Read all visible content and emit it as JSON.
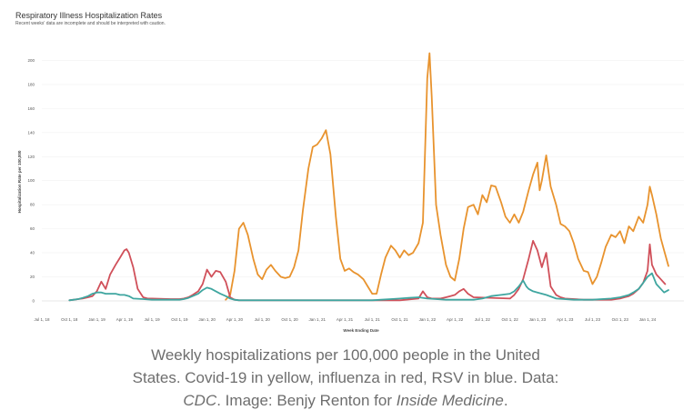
{
  "chart_data": {
    "type": "line",
    "title": "Respiratory Illness Hospitalization Rates",
    "subtitle": "Recent weeks' data are incomplete and should be interpreted with caution.",
    "xlabel": "Week Ending Date",
    "ylabel": "Hospitalization Rate per 100,000",
    "ylim": [
      0,
      220
    ],
    "xlim": [
      2018.5,
      2024.33
    ],
    "y_ticks": [
      0,
      20,
      40,
      60,
      80,
      100,
      120,
      140,
      160,
      180,
      200
    ],
    "x_ticks": [
      {
        "label": "Jul 1, 18",
        "x": 2018.5
      },
      {
        "label": "Oct 1, 18",
        "x": 2018.75
      },
      {
        "label": "Jan 1, 19",
        "x": 2019.0
      },
      {
        "label": "Apr 1, 19",
        "x": 2019.25
      },
      {
        "label": "Jul 1, 19",
        "x": 2019.5
      },
      {
        "label": "Oct 1, 19",
        "x": 2019.75
      },
      {
        "label": "Jan 1, 20",
        "x": 2020.0
      },
      {
        "label": "Apr 1, 20",
        "x": 2020.25
      },
      {
        "label": "Jul 1, 20",
        "x": 2020.5
      },
      {
        "label": "Oct 1, 20",
        "x": 2020.75
      },
      {
        "label": "Jan 1, 21",
        "x": 2021.0
      },
      {
        "label": "Apr 1, 21",
        "x": 2021.25
      },
      {
        "label": "Jul 1, 21",
        "x": 2021.5
      },
      {
        "label": "Oct 1, 21",
        "x": 2021.75
      },
      {
        "label": "Jan 1, 22",
        "x": 2022.0
      },
      {
        "label": "Apr 1, 22",
        "x": 2022.25
      },
      {
        "label": "Jul 1, 22",
        "x": 2022.5
      },
      {
        "label": "Oct 1, 22",
        "x": 2022.75
      },
      {
        "label": "Jan 1, 23",
        "x": 2023.0
      },
      {
        "label": "Apr 1, 23",
        "x": 2023.25
      },
      {
        "label": "Jul 1, 23",
        "x": 2023.5
      },
      {
        "label": "Oct 1, 23",
        "x": 2023.75
      },
      {
        "label": "Jan 1, 24",
        "x": 2024.0
      }
    ],
    "series": [
      {
        "name": "Covid-19",
        "color": "#e8932e",
        "points": [
          [
            2020.17,
            1
          ],
          [
            2020.21,
            5
          ],
          [
            2020.25,
            25
          ],
          [
            2020.29,
            60
          ],
          [
            2020.33,
            65
          ],
          [
            2020.37,
            55
          ],
          [
            2020.42,
            35
          ],
          [
            2020.46,
            22
          ],
          [
            2020.5,
            18
          ],
          [
            2020.54,
            26
          ],
          [
            2020.58,
            30
          ],
          [
            2020.62,
            25
          ],
          [
            2020.67,
            20
          ],
          [
            2020.71,
            19
          ],
          [
            2020.75,
            20
          ],
          [
            2020.79,
            28
          ],
          [
            2020.83,
            42
          ],
          [
            2020.87,
            75
          ],
          [
            2020.92,
            110
          ],
          [
            2020.96,
            128
          ],
          [
            2021.0,
            130
          ],
          [
            2021.04,
            135
          ],
          [
            2021.08,
            142
          ],
          [
            2021.12,
            122
          ],
          [
            2021.17,
            70
          ],
          [
            2021.21,
            35
          ],
          [
            2021.25,
            25
          ],
          [
            2021.29,
            27
          ],
          [
            2021.33,
            24
          ],
          [
            2021.37,
            22
          ],
          [
            2021.42,
            18
          ],
          [
            2021.46,
            12
          ],
          [
            2021.5,
            6
          ],
          [
            2021.54,
            6
          ],
          [
            2021.58,
            22
          ],
          [
            2021.62,
            36
          ],
          [
            2021.67,
            46
          ],
          [
            2021.71,
            42
          ],
          [
            2021.75,
            36
          ],
          [
            2021.79,
            42
          ],
          [
            2021.83,
            38
          ],
          [
            2021.87,
            40
          ],
          [
            2021.92,
            48
          ],
          [
            2021.96,
            65
          ],
          [
            2022.0,
            185
          ],
          [
            2022.02,
            206
          ],
          [
            2022.04,
            170
          ],
          [
            2022.08,
            80
          ],
          [
            2022.12,
            55
          ],
          [
            2022.17,
            30
          ],
          [
            2022.21,
            20
          ],
          [
            2022.25,
            17
          ],
          [
            2022.29,
            35
          ],
          [
            2022.33,
            60
          ],
          [
            2022.37,
            78
          ],
          [
            2022.42,
            80
          ],
          [
            2022.46,
            72
          ],
          [
            2022.5,
            88
          ],
          [
            2022.54,
            82
          ],
          [
            2022.58,
            96
          ],
          [
            2022.62,
            95
          ],
          [
            2022.67,
            82
          ],
          [
            2022.71,
            70
          ],
          [
            2022.75,
            65
          ],
          [
            2022.79,
            72
          ],
          [
            2022.83,
            65
          ],
          [
            2022.87,
            74
          ],
          [
            2022.92,
            92
          ],
          [
            2022.96,
            105
          ],
          [
            2023.0,
            115
          ],
          [
            2023.02,
            92
          ],
          [
            2023.04,
            100
          ],
          [
            2023.08,
            121
          ],
          [
            2023.12,
            95
          ],
          [
            2023.17,
            80
          ],
          [
            2023.21,
            64
          ],
          [
            2023.25,
            62
          ],
          [
            2023.29,
            58
          ],
          [
            2023.33,
            48
          ],
          [
            2023.37,
            35
          ],
          [
            2023.42,
            25
          ],
          [
            2023.46,
            24
          ],
          [
            2023.5,
            14
          ],
          [
            2023.54,
            20
          ],
          [
            2023.58,
            32
          ],
          [
            2023.62,
            45
          ],
          [
            2023.67,
            55
          ],
          [
            2023.71,
            53
          ],
          [
            2023.75,
            58
          ],
          [
            2023.79,
            48
          ],
          [
            2023.83,
            62
          ],
          [
            2023.87,
            58
          ],
          [
            2023.92,
            70
          ],
          [
            2023.96,
            65
          ],
          [
            2024.0,
            80
          ],
          [
            2024.02,
            95
          ],
          [
            2024.04,
            88
          ],
          [
            2024.08,
            72
          ],
          [
            2024.12,
            52
          ],
          [
            2024.15,
            42
          ],
          [
            2024.19,
            29
          ]
        ]
      },
      {
        "name": "Influenza",
        "color": "#d0505a",
        "points": [
          [
            2018.75,
            0.5
          ],
          [
            2018.79,
            1
          ],
          [
            2018.83,
            1.5
          ],
          [
            2018.87,
            2
          ],
          [
            2018.92,
            3
          ],
          [
            2018.96,
            4
          ],
          [
            2019.0,
            8
          ],
          [
            2019.04,
            16
          ],
          [
            2019.08,
            10
          ],
          [
            2019.12,
            22
          ],
          [
            2019.17,
            30
          ],
          [
            2019.21,
            36
          ],
          [
            2019.25,
            42
          ],
          [
            2019.27,
            43
          ],
          [
            2019.29,
            40
          ],
          [
            2019.33,
            28
          ],
          [
            2019.37,
            10
          ],
          [
            2019.42,
            3
          ],
          [
            2019.46,
            2
          ],
          [
            2019.5,
            2
          ],
          [
            2019.67,
            1.5
          ],
          [
            2019.75,
            1.5
          ],
          [
            2019.79,
            2
          ],
          [
            2019.83,
            3
          ],
          [
            2019.87,
            5
          ],
          [
            2019.92,
            8
          ],
          [
            2019.96,
            14
          ],
          [
            2020.0,
            26
          ],
          [
            2020.04,
            20
          ],
          [
            2020.08,
            25
          ],
          [
            2020.12,
            24
          ],
          [
            2020.17,
            16
          ],
          [
            2020.21,
            3
          ],
          [
            2020.25,
            1
          ],
          [
            2020.29,
            0.5
          ],
          [
            2021.75,
            0.5
          ],
          [
            2021.92,
            2
          ],
          [
            2021.96,
            8
          ],
          [
            2022.0,
            3
          ],
          [
            2022.04,
            2
          ],
          [
            2022.08,
            2
          ],
          [
            2022.12,
            2
          ],
          [
            2022.17,
            3
          ],
          [
            2022.21,
            4
          ],
          [
            2022.25,
            5
          ],
          [
            2022.29,
            8
          ],
          [
            2022.33,
            10
          ],
          [
            2022.37,
            6
          ],
          [
            2022.42,
            3
          ],
          [
            2022.75,
            2
          ],
          [
            2022.79,
            5
          ],
          [
            2022.83,
            10
          ],
          [
            2022.87,
            18
          ],
          [
            2022.92,
            35
          ],
          [
            2022.96,
            50
          ],
          [
            2023.0,
            42
          ],
          [
            2023.04,
            28
          ],
          [
            2023.08,
            40
          ],
          [
            2023.12,
            12
          ],
          [
            2023.17,
            5
          ],
          [
            2023.21,
            3
          ],
          [
            2023.25,
            2
          ],
          [
            2023.42,
            1
          ],
          [
            2023.67,
            1
          ],
          [
            2023.75,
            2
          ],
          [
            2023.79,
            3
          ],
          [
            2023.83,
            4
          ],
          [
            2023.87,
            6
          ],
          [
            2023.92,
            10
          ],
          [
            2023.96,
            15
          ],
          [
            2024.0,
            25
          ],
          [
            2024.02,
            47
          ],
          [
            2024.04,
            30
          ],
          [
            2024.08,
            22
          ],
          [
            2024.12,
            18
          ],
          [
            2024.16,
            14
          ]
        ]
      },
      {
        "name": "RSV",
        "color": "#3fa6a0",
        "points": [
          [
            2018.75,
            0.5
          ],
          [
            2018.79,
            1
          ],
          [
            2018.83,
            1.5
          ],
          [
            2018.87,
            2.5
          ],
          [
            2018.92,
            4
          ],
          [
            2018.96,
            6
          ],
          [
            2019.0,
            7
          ],
          [
            2019.04,
            7
          ],
          [
            2019.08,
            6
          ],
          [
            2019.12,
            6
          ],
          [
            2019.17,
            6
          ],
          [
            2019.21,
            5
          ],
          [
            2019.25,
            5
          ],
          [
            2019.29,
            4
          ],
          [
            2019.33,
            2
          ],
          [
            2019.42,
            1.5
          ],
          [
            2019.5,
            1
          ],
          [
            2019.75,
            1
          ],
          [
            2019.79,
            1.5
          ],
          [
            2019.83,
            2.5
          ],
          [
            2019.87,
            4
          ],
          [
            2019.92,
            6
          ],
          [
            2019.96,
            9
          ],
          [
            2020.0,
            11
          ],
          [
            2020.04,
            10
          ],
          [
            2020.08,
            8
          ],
          [
            2020.12,
            6
          ],
          [
            2020.17,
            4
          ],
          [
            2020.21,
            2
          ],
          [
            2020.25,
            1
          ],
          [
            2020.29,
            0.5
          ],
          [
            2020.75,
            0.5
          ],
          [
            2021.5,
            0.5
          ],
          [
            2021.58,
            1
          ],
          [
            2021.67,
            1.5
          ],
          [
            2021.75,
            2
          ],
          [
            2021.83,
            2.5
          ],
          [
            2021.92,
            3
          ],
          [
            2022.0,
            2
          ],
          [
            2022.08,
            1.5
          ],
          [
            2022.17,
            1
          ],
          [
            2022.42,
            1
          ],
          [
            2022.5,
            2
          ],
          [
            2022.58,
            4
          ],
          [
            2022.67,
            5
          ],
          [
            2022.75,
            6
          ],
          [
            2022.79,
            8
          ],
          [
            2022.83,
            12
          ],
          [
            2022.87,
            17
          ],
          [
            2022.9,
            12
          ],
          [
            2022.92,
            10
          ],
          [
            2022.96,
            8
          ],
          [
            2023.0,
            7
          ],
          [
            2023.08,
            5
          ],
          [
            2023.17,
            2
          ],
          [
            2023.33,
            1
          ],
          [
            2023.5,
            1
          ],
          [
            2023.67,
            2
          ],
          [
            2023.75,
            3
          ],
          [
            2023.79,
            4
          ],
          [
            2023.83,
            5
          ],
          [
            2023.87,
            7
          ],
          [
            2023.92,
            10
          ],
          [
            2023.96,
            15
          ],
          [
            2024.0,
            20
          ],
          [
            2024.04,
            23
          ],
          [
            2024.08,
            14
          ],
          [
            2024.12,
            10
          ],
          [
            2024.15,
            7
          ],
          [
            2024.19,
            9
          ]
        ]
      }
    ]
  },
  "caption": {
    "line1": "Weekly hospitalizations per 100,000 people in the United",
    "line2": "States. Covid-19 in yellow, influenza in red, RSV in blue. Data:",
    "line3_source": "CDC",
    "line3_mid": ". Image: Benjy Renton for ",
    "line3_pub": "Inside Medicine",
    "line3_end": "."
  }
}
